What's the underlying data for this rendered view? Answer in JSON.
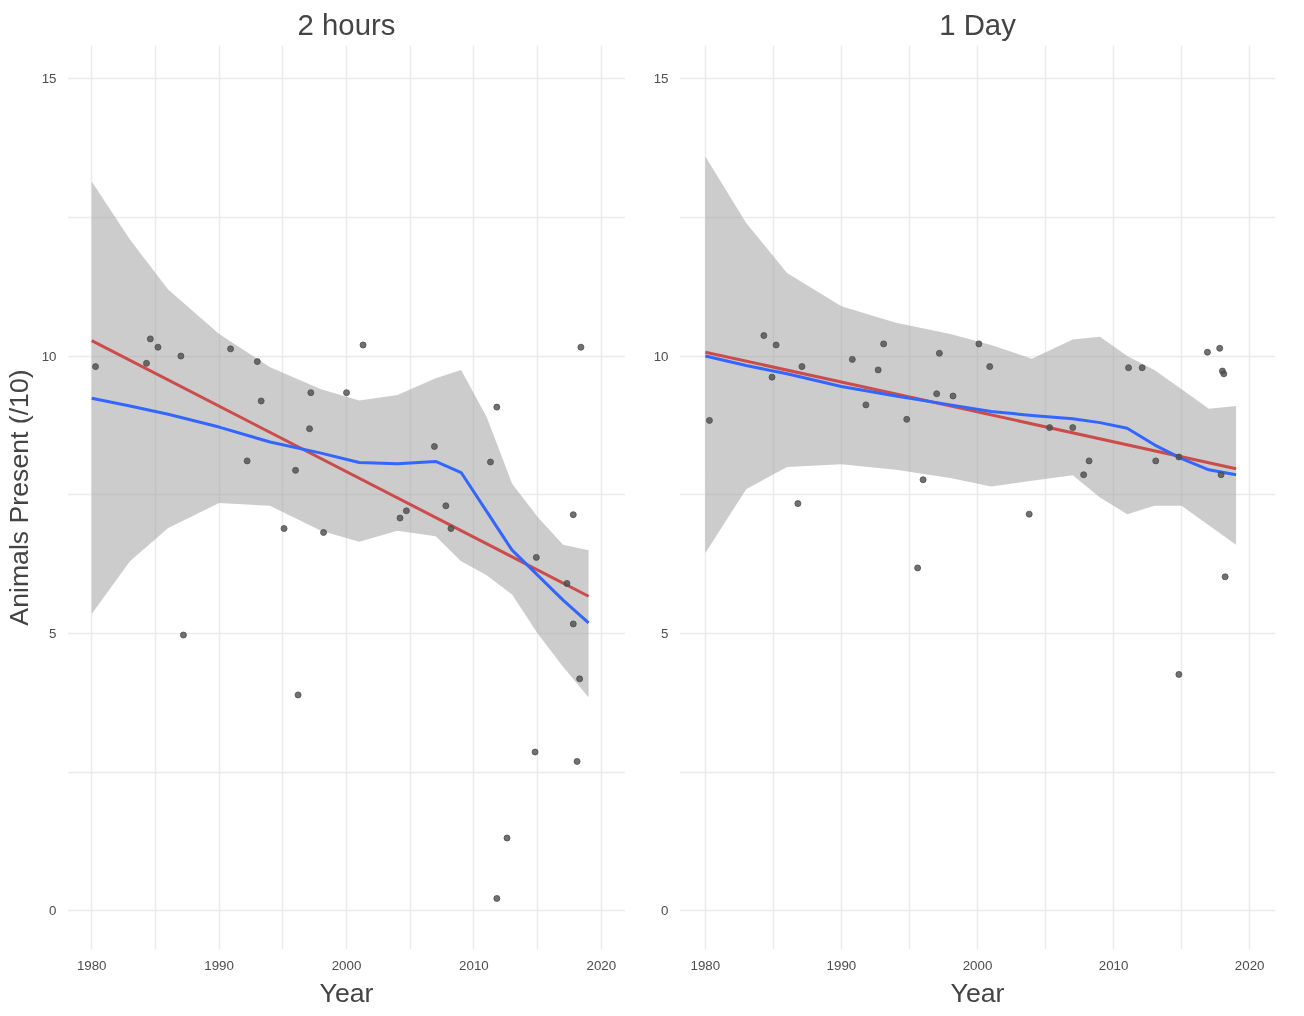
{
  "chart_data": [
    {
      "type": "scatter",
      "title": "2 hours",
      "xlabel": "Year",
      "ylabel": "Animals Present (/10)",
      "grid": true,
      "xlim": [
        1978.1,
        2021.9
      ],
      "ylim": [
        -0.7,
        15.6
      ],
      "xticks": [
        1980,
        {
          "value": 1985,
          "label": null
        },
        1990,
        {
          "value": 1995,
          "label": null
        },
        2000,
        {
          "value": 2005,
          "label": null
        },
        2010,
        {
          "value": 2015,
          "label": null
        },
        2020
      ],
      "yticks": [
        0,
        {
          "value": 2.5,
          "label": null
        },
        5,
        {
          "value": 7.5,
          "label": null
        },
        10,
        {
          "value": 12.5,
          "label": null
        },
        15
      ],
      "series": [
        {
          "marker": "circle",
          "color": "#4d4d4d",
          "x": [
            1980.3,
            1984.6,
            1985.2,
            1984.3,
            1987.0,
            1987.2,
            1990.9,
            1992.2,
            1993.0,
            1993.3,
            1995.1,
            1996.0,
            1996.2,
            1997.2,
            1997.1,
            1998.2,
            2000.0,
            2001.3,
            2004.2,
            2004.7,
            2006.9,
            2007.8,
            2008.2,
            2011.3,
            2011.8,
            2011.8,
            2012.6,
            2014.8,
            2014.9,
            2017.3,
            2017.8,
            2017.8,
            2018.1,
            2018.3,
            2018.4
          ],
          "values": [
            9.81,
            10.31,
            10.16,
            9.87,
            10.0,
            4.97,
            10.13,
            8.11,
            9.9,
            9.19,
            6.89,
            7.94,
            3.89,
            9.34,
            8.69,
            6.82,
            9.34,
            10.2,
            7.08,
            7.21,
            8.37,
            7.3,
            6.89,
            8.09,
            9.08,
            0.22,
            1.31,
            2.86,
            6.37,
            5.9,
            7.14,
            5.17,
            2.69,
            4.18,
            10.16
          ]
        },
        {
          "type": "line",
          "color": "#cc4c4c",
          "x": [
            1980,
            2019
          ],
          "values": [
            10.28,
            5.67
          ]
        },
        {
          "type": "line",
          "color": "#3366ff",
          "x": [
            1980,
            1983,
            1986,
            1990,
            1994,
            1998,
            2001,
            2004,
            2007,
            2009,
            2011,
            2013,
            2015,
            2017,
            2019
          ],
          "values": [
            9.24,
            9.1,
            8.95,
            8.72,
            8.45,
            8.25,
            8.08,
            8.06,
            8.1,
            7.9,
            7.2,
            6.5,
            6.05,
            5.6,
            5.19
          ],
          "lower": [
            5.35,
            6.3,
            6.9,
            7.35,
            7.3,
            6.85,
            6.65,
            6.85,
            6.75,
            6.3,
            6.05,
            5.7,
            5.0,
            4.4,
            3.85
          ],
          "upper": [
            13.15,
            12.1,
            11.2,
            10.4,
            9.8,
            9.4,
            9.2,
            9.3,
            9.6,
            9.75,
            8.9,
            7.7,
            7.1,
            6.6,
            6.5
          ]
        }
      ]
    },
    {
      "type": "scatter",
      "title": "1 Day",
      "xlabel": "Year",
      "grid": true,
      "xlim": [
        1978.1,
        2021.9
      ],
      "ylim": [
        -0.7,
        15.6
      ],
      "xticks": [
        1980,
        {
          "value": 1985,
          "label": null
        },
        1990,
        {
          "value": 1995,
          "label": null
        },
        2000,
        {
          "value": 2005,
          "label": null
        },
        2010,
        {
          "value": 2015,
          "label": null
        },
        2020
      ],
      "yticks": [
        0,
        {
          "value": 2.5,
          "label": null
        },
        5,
        {
          "value": 7.5,
          "label": null
        },
        10,
        {
          "value": 12.5,
          "label": null
        },
        15
      ],
      "series": [
        {
          "marker": "circle",
          "color": "#4d4d4d",
          "x": [
            1980.3,
            1984.3,
            1985.2,
            1984.9,
            1986.8,
            1987.1,
            1990.8,
            1991.8,
            1992.7,
            1993.1,
            1994.8,
            1995.6,
            1996.0,
            1997.0,
            1997.2,
            1998.2,
            2000.1,
            2000.9,
            2003.8,
            2005.3,
            2007.0,
            2007.8,
            2008.2,
            2011.1,
            2012.1,
            2013.1,
            2014.8,
            2014.8,
            2016.9,
            2017.8,
            2017.9,
            2018.0,
            2018.1,
            2018.2
          ],
          "values": [
            8.84,
            10.37,
            10.2,
            9.62,
            7.34,
            9.81,
            9.94,
            9.12,
            9.75,
            10.22,
            8.86,
            6.18,
            7.77,
            9.32,
            10.05,
            9.28,
            10.22,
            9.81,
            7.15,
            8.71,
            8.71,
            7.86,
            8.11,
            9.79,
            9.79,
            8.11,
            8.18,
            4.26,
            10.07,
            10.14,
            7.86,
            9.73,
            9.68,
            6.02
          ]
        },
        {
          "type": "line",
          "color": "#cc4c4c",
          "x": [
            1980,
            2019
          ],
          "values": [
            10.07,
            7.97
          ]
        },
        {
          "type": "line",
          "color": "#3366ff",
          "x": [
            1980,
            1983,
            1986,
            1990,
            1994,
            1998,
            2001,
            2004,
            2007,
            2009,
            2011,
            2013,
            2015,
            2017,
            2019
          ],
          "values": [
            10.0,
            9.83,
            9.68,
            9.45,
            9.28,
            9.12,
            9.0,
            8.93,
            8.87,
            8.8,
            8.7,
            8.4,
            8.15,
            7.95,
            7.86
          ],
          "lower": [
            6.45,
            7.6,
            8.0,
            8.05,
            7.95,
            7.8,
            7.65,
            7.75,
            7.85,
            7.45,
            7.15,
            7.3,
            7.3,
            6.95,
            6.6
          ],
          "upper": [
            13.6,
            12.4,
            11.5,
            10.9,
            10.6,
            10.4,
            10.2,
            9.95,
            10.3,
            10.35,
            10.0,
            9.75,
            9.4,
            9.05,
            9.1
          ]
        }
      ]
    }
  ]
}
